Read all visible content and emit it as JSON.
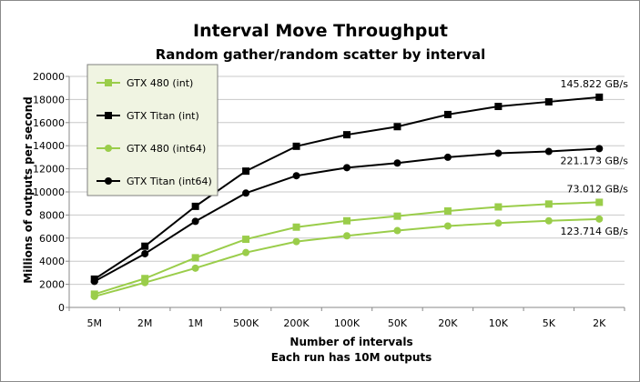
{
  "chart_data": {
    "type": "line",
    "title": "Interval Move Throughput",
    "subtitle": "Random gather/random  scatter by interval",
    "xlabel": "Number of intervals",
    "xlabel2": "Each run has 10M outputs",
    "ylabel": "Millions of outputs per second",
    "categories": [
      "5M",
      "2M",
      "1M",
      "500K",
      "200K",
      "100K",
      "50K",
      "20K",
      "10K",
      "5K",
      "2K"
    ],
    "ylim": [
      0,
      20000
    ],
    "yticks": [
      0,
      2000,
      4000,
      6000,
      8000,
      10000,
      12000,
      14000,
      16000,
      18000,
      20000
    ],
    "grid": "horizontal",
    "legend_position": "top-left",
    "series": [
      {
        "name": "GTX 480 (int)",
        "marker": "square",
        "color": "#9acd4a",
        "values": [
          1150,
          2500,
          4300,
          5900,
          6950,
          7500,
          7900,
          8350,
          8700,
          8950,
          9100
        ]
      },
      {
        "name": "GTX Titan (int)",
        "marker": "square",
        "color": "#000000",
        "values": [
          2450,
          5300,
          8750,
          11800,
          13950,
          14950,
          15650,
          16700,
          17400,
          17800,
          18200
        ]
      },
      {
        "name": "GTX 480 (int64)",
        "marker": "circle",
        "color": "#9acd4a",
        "values": [
          950,
          2150,
          3400,
          4750,
          5700,
          6200,
          6650,
          7050,
          7300,
          7500,
          7650
        ]
      },
      {
        "name": "GTX Titan (int64)",
        "marker": "circle",
        "color": "#000000",
        "values": [
          2250,
          4650,
          7450,
          9900,
          11400,
          12100,
          12500,
          13000,
          13350,
          13500,
          13750
        ]
      }
    ],
    "annotations": [
      {
        "text": "145.822 GB/s",
        "series": 1
      },
      {
        "text": "221.173 GB/s",
        "series": 3
      },
      {
        "text": "73.012 GB/s",
        "series": 0
      },
      {
        "text": "123.714 GB/s",
        "series": 2
      }
    ]
  }
}
